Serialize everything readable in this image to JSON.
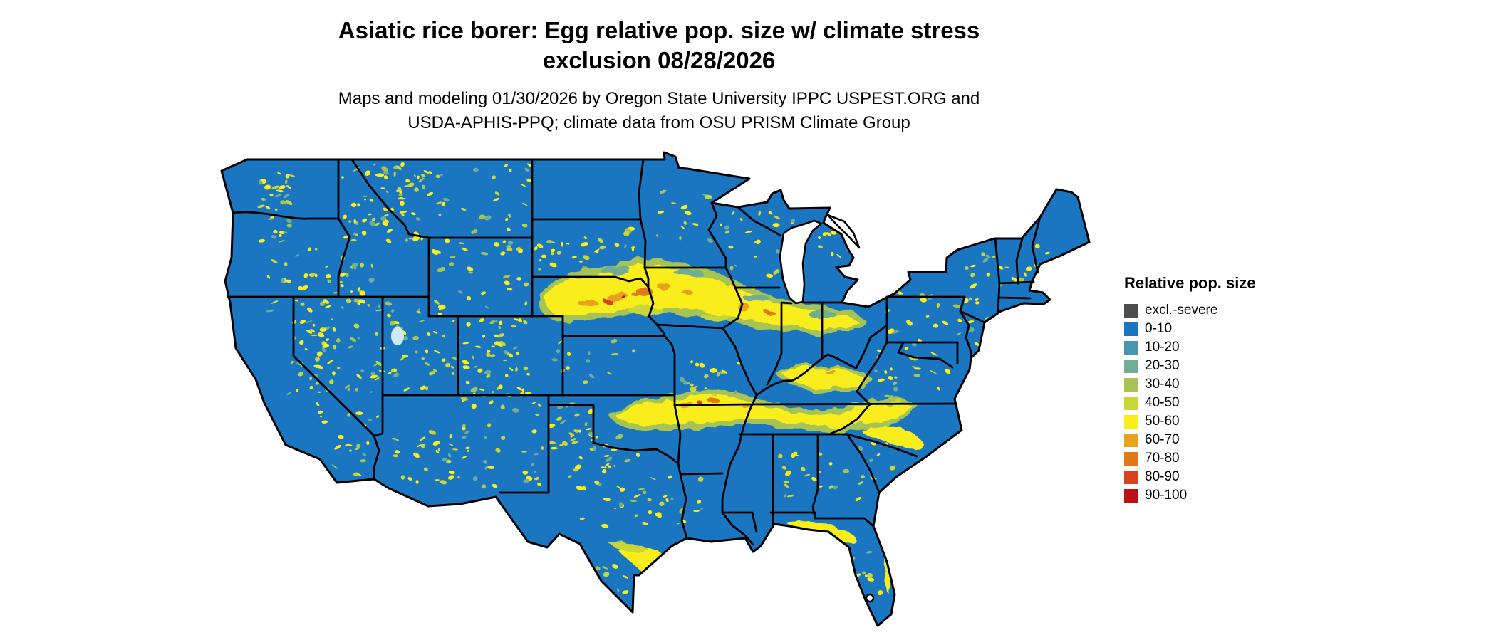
{
  "header": {
    "title_line1": "Asiatic rice borer: Egg relative pop. size w/ climate stress",
    "title_line2": "exclusion 08/28/2026",
    "subtitle_line1": "Maps and modeling 01/30/2026 by Oregon State University IPPC USPEST.ORG and",
    "subtitle_line2": "USDA-APHIS-PPQ; climate data from OSU PRISM Climate Group"
  },
  "legend": {
    "title": "Relative pop. size",
    "items": [
      {
        "label": "excl.-severe",
        "color": "#4d4d4d"
      },
      {
        "label": "0-10",
        "color": "#1a76c0"
      },
      {
        "label": "10-20",
        "color": "#4596ae"
      },
      {
        "label": "20-30",
        "color": "#6fae94"
      },
      {
        "label": "30-40",
        "color": "#a6c353"
      },
      {
        "label": "40-50",
        "color": "#c8d736"
      },
      {
        "label": "50-60",
        "color": "#f9ee1b"
      },
      {
        "label": "60-70",
        "color": "#e9a21a"
      },
      {
        "label": "70-80",
        "color": "#e07a18"
      },
      {
        "label": "80-90",
        "color": "#d8421c"
      },
      {
        "label": "90-100",
        "color": "#bb1117"
      }
    ]
  },
  "map": {
    "base_color": "#1a76c0",
    "border_color": "#000000",
    "background_color": "#ffffff"
  }
}
